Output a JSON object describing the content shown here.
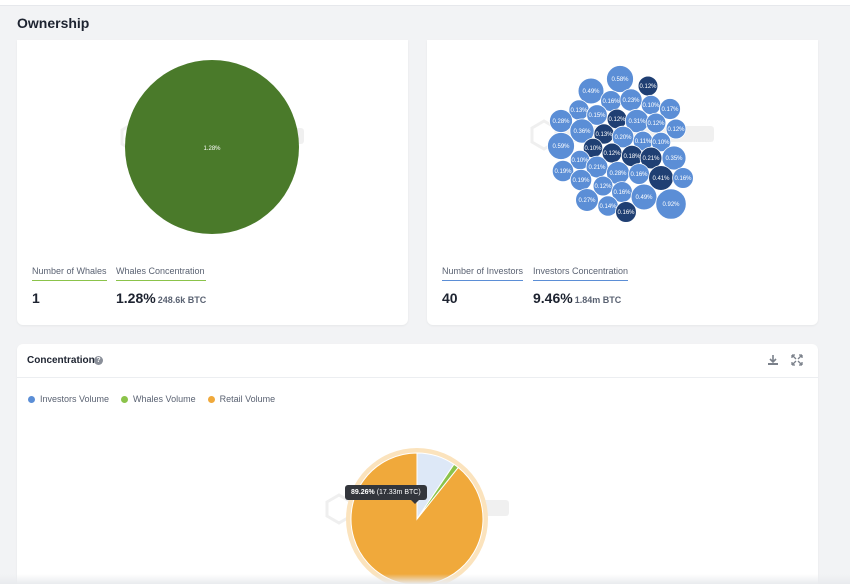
{
  "section_title": "Ownership",
  "colors": {
    "whales": "#4a7a2a",
    "whales_accent": "#8bc34a",
    "investors": "#5b8ed6",
    "investors_dark": "#1f3f73",
    "retail": "#f0a93b",
    "retail_light": "#fbe3bd"
  },
  "whales_card": {
    "pie_label": "1.28%",
    "stats": [
      {
        "label": "Number of Whales",
        "value": "1",
        "sub": ""
      },
      {
        "label": "Whales Concentration",
        "value": "1.28%",
        "sub": "248.6k BTC"
      }
    ]
  },
  "investors_card": {
    "bubbles": [
      {
        "label": "0.58%",
        "v": 0.58,
        "dark": false
      },
      {
        "label": "0.49%",
        "v": 0.49,
        "dark": false
      },
      {
        "label": "0.12%",
        "v": 0.12,
        "dark": true
      },
      {
        "label": "0.16%",
        "v": 0.16,
        "dark": false
      },
      {
        "label": "0.23%",
        "v": 0.23,
        "dark": false
      },
      {
        "label": "0.10%",
        "v": 0.1,
        "dark": false
      },
      {
        "label": "0.17%",
        "v": 0.17,
        "dark": false
      },
      {
        "label": "0.13%",
        "v": 0.13,
        "dark": false
      },
      {
        "label": "0.15%",
        "v": 0.15,
        "dark": false
      },
      {
        "label": "0.12%",
        "v": 0.12,
        "dark": true
      },
      {
        "label": "0.31%",
        "v": 0.31,
        "dark": false
      },
      {
        "label": "0.12%",
        "v": 0.12,
        "dark": false
      },
      {
        "label": "0.12%",
        "v": 0.12,
        "dark": false
      },
      {
        "label": "0.28%",
        "v": 0.28,
        "dark": false
      },
      {
        "label": "0.36%",
        "v": 0.36,
        "dark": false
      },
      {
        "label": "0.13%",
        "v": 0.13,
        "dark": true
      },
      {
        "label": "0.20%",
        "v": 0.2,
        "dark": false
      },
      {
        "label": "0.11%",
        "v": 0.11,
        "dark": false
      },
      {
        "label": "0.10%",
        "v": 0.1,
        "dark": false
      },
      {
        "label": "0.59%",
        "v": 0.59,
        "dark": false
      },
      {
        "label": "0.10%",
        "v": 0.1,
        "dark": true
      },
      {
        "label": "0.12%",
        "v": 0.12,
        "dark": true
      },
      {
        "label": "0.18%",
        "v": 0.18,
        "dark": true
      },
      {
        "label": "0.21%",
        "v": 0.21,
        "dark": true
      },
      {
        "label": "0.35%",
        "v": 0.35,
        "dark": false
      },
      {
        "label": "0.10%",
        "v": 0.1,
        "dark": false
      },
      {
        "label": "0.19%",
        "v": 0.19,
        "dark": false
      },
      {
        "label": "0.21%",
        "v": 0.21,
        "dark": false
      },
      {
        "label": "0.19%",
        "v": 0.19,
        "dark": false
      },
      {
        "label": "0.28%",
        "v": 0.28,
        "dark": false
      },
      {
        "label": "0.16%",
        "v": 0.16,
        "dark": false
      },
      {
        "label": "0.41%",
        "v": 0.41,
        "dark": true
      },
      {
        "label": "0.16%",
        "v": 0.16,
        "dark": false
      },
      {
        "label": "0.12%",
        "v": 0.12,
        "dark": false
      },
      {
        "label": "0.16%",
        "v": 0.16,
        "dark": false
      },
      {
        "label": "0.27%",
        "v": 0.27,
        "dark": false
      },
      {
        "label": "0.14%",
        "v": 0.14,
        "dark": false
      },
      {
        "label": "0.49%",
        "v": 0.49,
        "dark": false
      },
      {
        "label": "0.92%",
        "v": 0.92,
        "dark": false
      },
      {
        "label": "0.16%",
        "v": 0.16,
        "dark": true
      }
    ],
    "stats": [
      {
        "label": "Number of Investors",
        "value": "40",
        "sub": ""
      },
      {
        "label": "Investors Concentration",
        "value": "9.46%",
        "sub": "1.84m BTC"
      }
    ]
  },
  "concentration": {
    "title": "Concentration",
    "help_icon": "question-circle-icon",
    "download_icon": "download-icon",
    "expand_icon": "expand-icon",
    "legend": [
      {
        "name": "Investors Volume",
        "color": "#5b8ed6"
      },
      {
        "name": "Whales Volume",
        "color": "#8bc34a"
      },
      {
        "name": "Retail Volume",
        "color": "#f0a93b"
      }
    ],
    "tooltip": {
      "value": "89.26%",
      "detail": "(17.33m BTC)"
    },
    "chart_data": {
      "type": "pie",
      "slices": [
        {
          "name": "Retail Volume",
          "value": 89.26
        },
        {
          "name": "Investors Volume",
          "value": 9.46
        },
        {
          "name": "Whales Volume",
          "value": 1.28
        }
      ]
    }
  }
}
